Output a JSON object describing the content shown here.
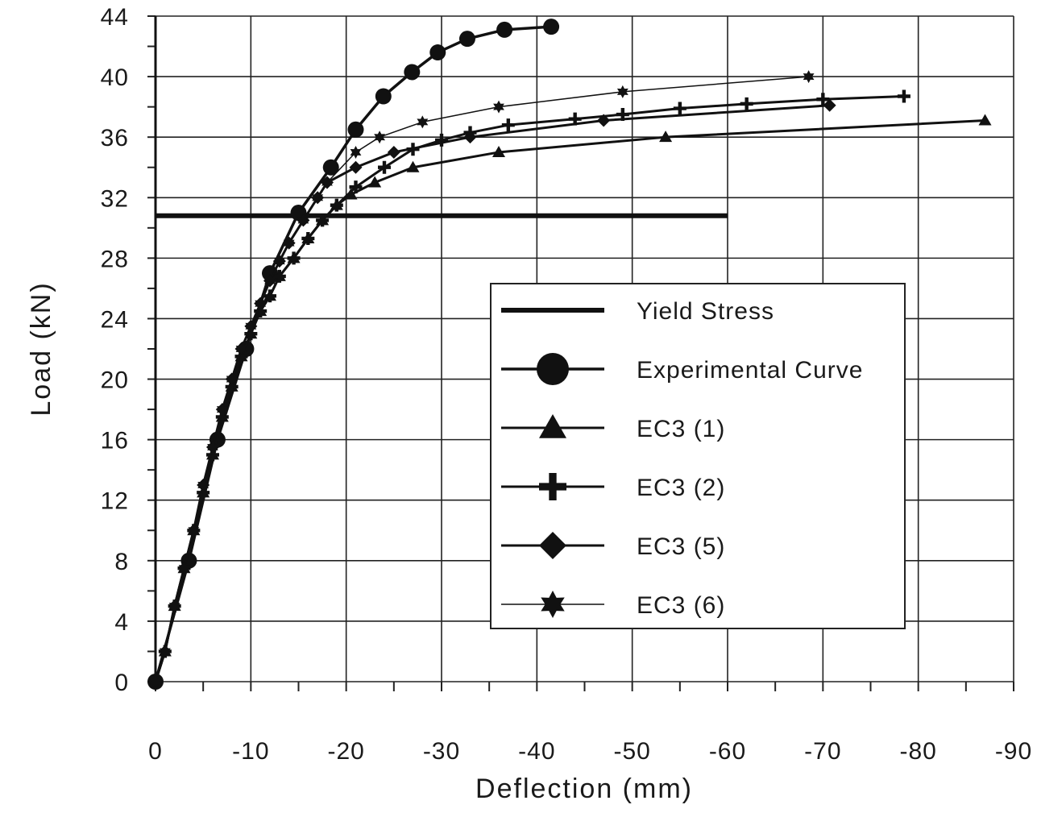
{
  "chart_data": {
    "type": "line",
    "title": "",
    "xlabel": "Deflection (mm)",
    "ylabel": "Load (kN)",
    "xlim": [
      0,
      -90
    ],
    "ylim": [
      0,
      44
    ],
    "xticks": [
      "0",
      "-10",
      "-20",
      "-30",
      "-40",
      "-50",
      "-60",
      "-70",
      "-80",
      "-90"
    ],
    "xtick_values": [
      0,
      -10,
      -20,
      -30,
      -40,
      -50,
      -60,
      -70,
      -80,
      -90
    ],
    "yticks": [
      "0",
      "4",
      "8",
      "12",
      "16",
      "20",
      "24",
      "28",
      "32",
      "36",
      "40",
      "44"
    ],
    "ytick_values": [
      0,
      4,
      8,
      12,
      16,
      20,
      24,
      28,
      32,
      36,
      40,
      44
    ],
    "grid": true,
    "legend_position": "center-right",
    "series": [
      {
        "name": "Yield Stress",
        "marker": "none",
        "width": 6,
        "x": [
          0,
          -60
        ],
        "y": [
          30.8,
          30.8
        ]
      },
      {
        "name": "Experimental Curve",
        "marker": "circle",
        "width": 3.5,
        "x": [
          0,
          -3.5,
          -6.5,
          -9.5,
          -12,
          -15,
          -18.4,
          -21,
          -23.9,
          -26.9,
          -29.6,
          -32.7,
          -36.6,
          -41.5
        ],
        "y": [
          0,
          8,
          16,
          22,
          27,
          31,
          34,
          36.5,
          38.7,
          40.3,
          41.6,
          42.5,
          43.1,
          43.3
        ]
      },
      {
        "name": "EC3 (1)",
        "marker": "triangle",
        "width": 3,
        "x": [
          0,
          -1,
          -2,
          -3,
          -4,
          -5,
          -6,
          -7,
          -8,
          -9,
          -10,
          -11,
          -12,
          -13,
          -14.5,
          -16,
          -17.5,
          -19,
          -20.5,
          -23,
          -27,
          -36,
          -53.5,
          -87
        ],
        "y": [
          0,
          2,
          5,
          7.5,
          10,
          12.5,
          15,
          17.5,
          19.5,
          21.5,
          23,
          24.5,
          25.5,
          26.8,
          28,
          29.3,
          30.5,
          31.5,
          32.2,
          33,
          34,
          35,
          36,
          37.1
        ]
      },
      {
        "name": "EC3 (2)",
        "marker": "plus",
        "width": 3,
        "x": [
          0,
          -1,
          -2,
          -3,
          -4,
          -5,
          -6,
          -7,
          -8,
          -9,
          -10,
          -11,
          -12,
          -13,
          -14.5,
          -16,
          -17.5,
          -19,
          -21,
          -24,
          -27,
          -30,
          -33,
          -37,
          -44,
          -49,
          -55,
          -62,
          -70,
          -78.5
        ],
        "y": [
          0,
          2,
          5,
          7.5,
          10,
          12.5,
          15,
          17.5,
          19.5,
          21.5,
          23,
          24.5,
          25.5,
          26.8,
          28,
          29.3,
          30.5,
          31.5,
          32.7,
          34,
          35.2,
          35.8,
          36.3,
          36.8,
          37.2,
          37.5,
          37.9,
          38.2,
          38.5,
          38.7
        ]
      },
      {
        "name": "EC3 (5)",
        "marker": "diamond",
        "width": 3,
        "x": [
          0,
          -1,
          -2,
          -3,
          -4,
          -5,
          -6,
          -7,
          -8,
          -9,
          -10,
          -11,
          -12,
          -13,
          -14,
          -15.5,
          -17,
          -18,
          -21,
          -25,
          -33,
          -47,
          -70.7
        ],
        "y": [
          0,
          2,
          5,
          7.5,
          10,
          13,
          15.5,
          18,
          20,
          22,
          23.5,
          25,
          26.5,
          27.8,
          29,
          30.5,
          32,
          33,
          34,
          35,
          36,
          37.1,
          38.1
        ]
      },
      {
        "name": "EC3 (6)",
        "marker": "star",
        "width": 1.5,
        "x": [
          0,
          -1,
          -2,
          -3,
          -4,
          -5,
          -6,
          -7,
          -8,
          -9,
          -10,
          -11,
          -12,
          -13,
          -14,
          -15.5,
          -17,
          -18,
          -21,
          -23.5,
          -28,
          -36,
          -49,
          -68.5
        ],
        "y": [
          0,
          2,
          5,
          7.5,
          10,
          13,
          15.5,
          18,
          20,
          22,
          23.5,
          25,
          26.5,
          27.8,
          29,
          30.5,
          32,
          33,
          35,
          36,
          37,
          38,
          39,
          40
        ]
      }
    ]
  }
}
